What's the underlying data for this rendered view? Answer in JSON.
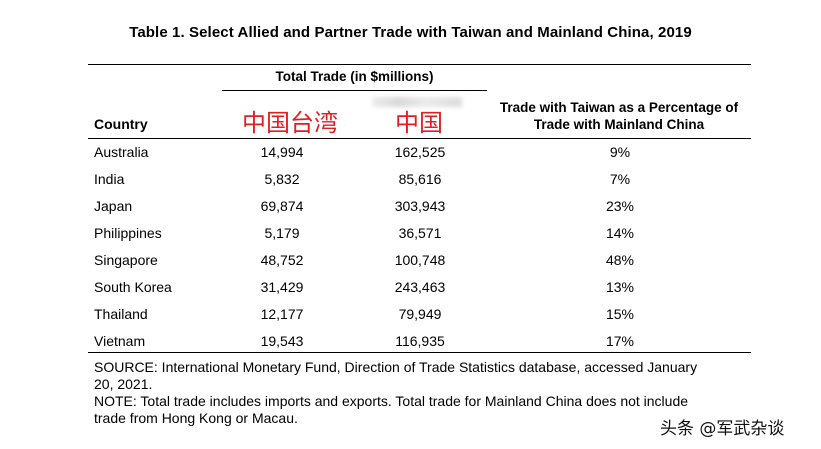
{
  "title": "Table 1. Select Allied and Partner Trade with Taiwan and Mainland China, 2019",
  "headers": {
    "group": "Total Trade (in $millions)",
    "country": "Country",
    "taiwan_overlay": "中国台湾",
    "mainland_overlay": "中国",
    "percentage": "Trade with Taiwan as a Percentage of Trade with Mainland China"
  },
  "rows": [
    {
      "country": "Australia",
      "taiwan": "14,994",
      "mainland": "162,525",
      "pct": "9%"
    },
    {
      "country": "India",
      "taiwan": "5,832",
      "mainland": "85,616",
      "pct": "7%"
    },
    {
      "country": "Japan",
      "taiwan": "69,874",
      "mainland": "303,943",
      "pct": "23%"
    },
    {
      "country": "Philippines",
      "taiwan": "5,179",
      "mainland": "36,571",
      "pct": "14%"
    },
    {
      "country": "Singapore",
      "taiwan": "48,752",
      "mainland": "100,748",
      "pct": "48%"
    },
    {
      "country": "South Korea",
      "taiwan": "31,429",
      "mainland": "243,463",
      "pct": "13%"
    },
    {
      "country": "Thailand",
      "taiwan": "12,177",
      "mainland": "79,949",
      "pct": "15%"
    },
    {
      "country": "Vietnam",
      "taiwan": "19,543",
      "mainland": "116,935",
      "pct": "17%"
    }
  ],
  "notes": {
    "source": "SOURCE: International Monetary Fund, Direction of Trade Statistics database, accessed January 20, 2021.",
    "note": "NOTE: Total trade includes imports and exports. Total trade for Mainland China does not include trade from Hong Kong or Macau."
  },
  "watermark": "头条 @军武杂谈",
  "colors": {
    "overlay_red": "#e02020",
    "text": "#000000",
    "background": "#ffffff"
  }
}
